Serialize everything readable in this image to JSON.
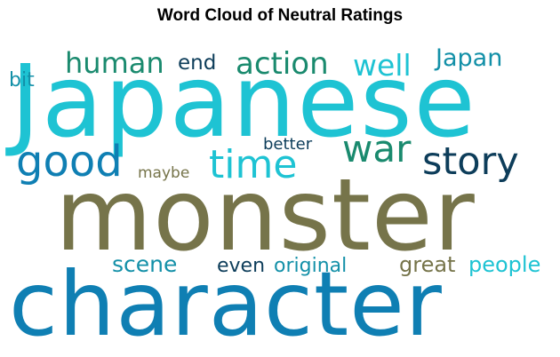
{
  "title": "Word Cloud of Neutral Ratings",
  "colors": {
    "cyan": "#1ec3d3",
    "blue": "#0f7fb3",
    "olive": "#76744a",
    "green": "#1a8a6e",
    "navy": "#0d3d5a",
    "teal": "#1390a8"
  },
  "words": {
    "japanese": {
      "text": "Japanese",
      "color": "#1ec3d3"
    },
    "monster": {
      "text": "monster",
      "color": "#76744a"
    },
    "character": {
      "text": "character",
      "color": "#0f7fb3"
    },
    "good": {
      "text": "good",
      "color": "#0f7fb3"
    },
    "time": {
      "text": "time",
      "color": "#1ec3d3"
    },
    "war": {
      "text": "war",
      "color": "#1a8a6e"
    },
    "story": {
      "text": "story",
      "color": "#0d3d5a"
    },
    "human": {
      "text": "human",
      "color": "#1a8a6e"
    },
    "action": {
      "text": "action",
      "color": "#1a8a6e"
    },
    "well": {
      "text": "well",
      "color": "#1ec3d3"
    },
    "end": {
      "text": "end",
      "color": "#0d3d5a"
    },
    "japan": {
      "text": "Japan",
      "color": "#1390a8"
    },
    "bit": {
      "text": "bit",
      "color": "#1390a8"
    },
    "better": {
      "text": "better",
      "color": "#0d3d5a"
    },
    "maybe": {
      "text": "maybe",
      "color": "#76744a"
    },
    "scene": {
      "text": "scene",
      "color": "#1390a8"
    },
    "even": {
      "text": "even",
      "color": "#0d3d5a"
    },
    "original": {
      "text": "original",
      "color": "#1390a8"
    },
    "great": {
      "text": "great",
      "color": "#76744a"
    },
    "people": {
      "text": "people",
      "color": "#1ec3d3"
    }
  }
}
